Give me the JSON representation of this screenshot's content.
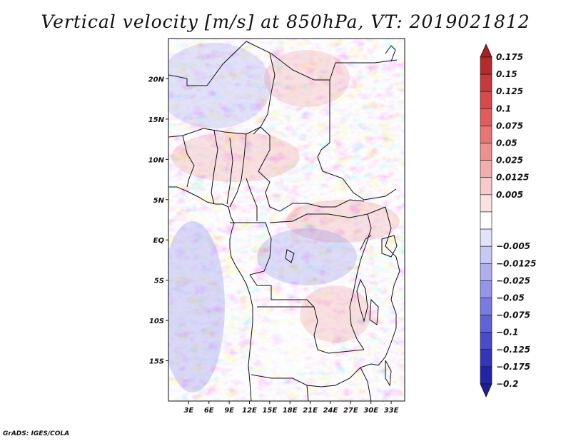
{
  "title": "Vertical velocity [m/s] at 850hPa, VT: 2019021812",
  "credit": "GrADS: IGES/COLA",
  "map": {
    "lon_range": [
      0,
      35
    ],
    "lat_range": [
      -20,
      25
    ],
    "lat_ticks": [
      {
        "value": 20,
        "label": "20N"
      },
      {
        "value": 15,
        "label": "15N"
      },
      {
        "value": 10,
        "label": "10N"
      },
      {
        "value": 5,
        "label": "5N"
      },
      {
        "value": 0,
        "label": "EQ"
      },
      {
        "value": -5,
        "label": "5S"
      },
      {
        "value": -10,
        "label": "10S"
      },
      {
        "value": -15,
        "label": "15S"
      }
    ],
    "lon_ticks": [
      {
        "value": 3,
        "label": "3E"
      },
      {
        "value": 6,
        "label": "6E"
      },
      {
        "value": 9,
        "label": "9E"
      },
      {
        "value": 12,
        "label": "12E"
      },
      {
        "value": 15,
        "label": "15E"
      },
      {
        "value": 18,
        "label": "18E"
      },
      {
        "value": 21,
        "label": "21E"
      },
      {
        "value": 24,
        "label": "24E"
      },
      {
        "value": 27,
        "label": "27E"
      },
      {
        "value": 30,
        "label": "30E"
      },
      {
        "value": 33,
        "label": "33E"
      }
    ]
  },
  "colorbar": {
    "levels": [
      {
        "label": "0.175",
        "color": "#b52a2a"
      },
      {
        "label": "0.15",
        "color": "#c83a3a"
      },
      {
        "label": "0.125",
        "color": "#d84a4a"
      },
      {
        "label": "0.1",
        "color": "#e25c5c"
      },
      {
        "label": "0.075",
        "color": "#e97474"
      },
      {
        "label": "0.05",
        "color": "#ef9090"
      },
      {
        "label": "0.025",
        "color": "#f4adad"
      },
      {
        "label": "0.0125",
        "color": "#f8caca"
      },
      {
        "label": "0.005",
        "color": "#fbe2e2"
      },
      {
        "label": "",
        "color": "#ffffff"
      },
      {
        "label": "−0.005",
        "color": "#e2e2fb"
      },
      {
        "label": "−0.0125",
        "color": "#c8c8f6"
      },
      {
        "label": "−0.025",
        "color": "#aeaef1"
      },
      {
        "label": "−0.05",
        "color": "#9494ea"
      },
      {
        "label": "−0.075",
        "color": "#7a7ae2"
      },
      {
        "label": "−0.1",
        "color": "#6262d8"
      },
      {
        "label": "−0.125",
        "color": "#4a4acb"
      },
      {
        "label": "−0.175",
        "color": "#3535bb"
      },
      {
        "label": "−0.2",
        "color": "#2424a6"
      }
    ],
    "top_color": "#a82020",
    "bottom_color": "#1e1e9a"
  }
}
